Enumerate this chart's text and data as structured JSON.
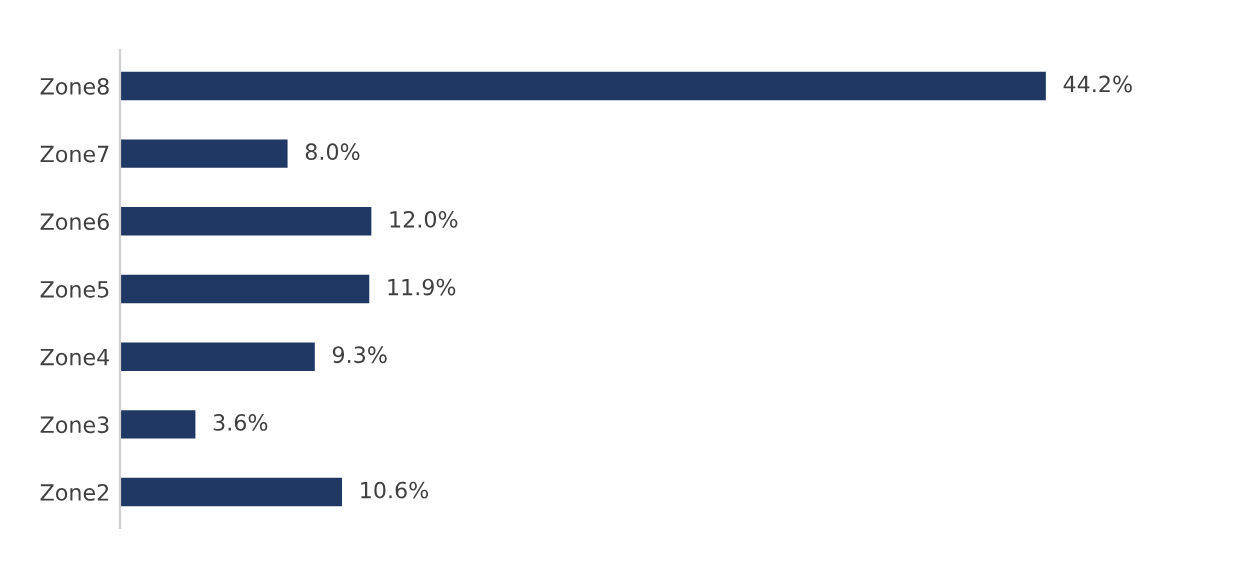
{
  "chart_data": {
    "type": "bar",
    "orientation": "horizontal",
    "categories": [
      "Zone8",
      "Zone7",
      "Zone6",
      "Zone5",
      "Zone4",
      "Zone3",
      "Zone2"
    ],
    "values": [
      44.2,
      8.0,
      12.0,
      11.9,
      9.3,
      3.6,
      10.6
    ],
    "value_labels": [
      "44.2%",
      "8.0%",
      "12.0%",
      "11.9%",
      "9.3%",
      "3.6%",
      "10.6%"
    ],
    "color": "#203864",
    "grid": false,
    "legend": false
  }
}
